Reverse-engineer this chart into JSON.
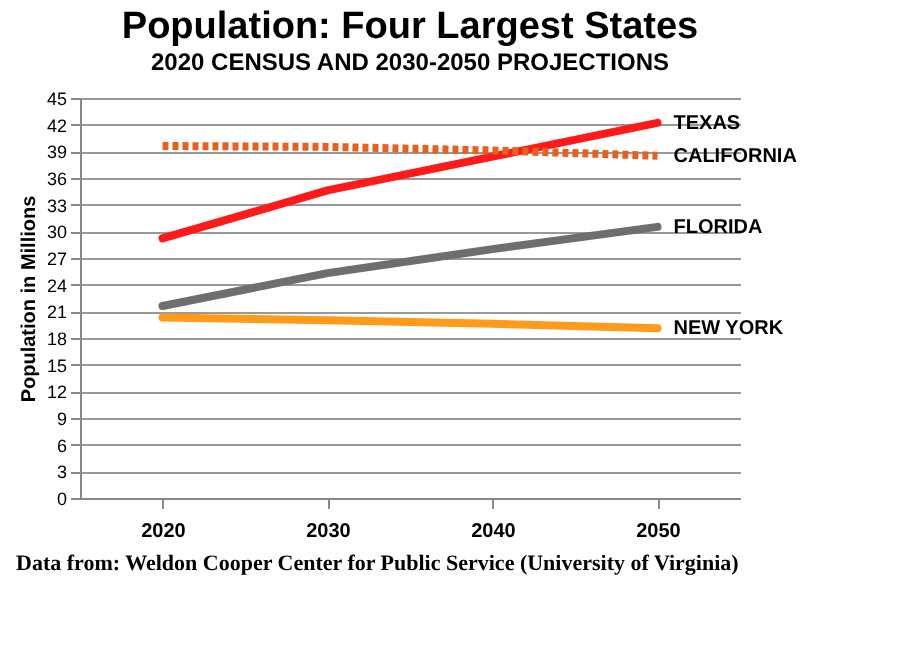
{
  "chart_data": {
    "type": "line",
    "title": "Population: Four Largest States",
    "subtitle": "2020 CENSUS AND 2030-2050 PROJECTIONS",
    "ylabel": "Population in Millions",
    "categories": [
      "2020",
      "2030",
      "2040",
      "2050"
    ],
    "series": [
      {
        "name": "TEXAS",
        "color": "#ff1a1a",
        "values": [
          29.2,
          34.6,
          38.4,
          42.2
        ]
      },
      {
        "name": "CALIFORNIA",
        "color": "#e8601c",
        "line_style": "dotted",
        "values": [
          39.6,
          39.5,
          39.1,
          38.5
        ]
      },
      {
        "name": "FLORIDA",
        "color": "#6e6e6e",
        "values": [
          21.6,
          25.3,
          28,
          30.5
        ]
      },
      {
        "name": "NEW YORK",
        "color": "#ff9a1a",
        "values": [
          20.3,
          20,
          19.6,
          19.1
        ]
      }
    ],
    "ylim": [
      0,
      45
    ],
    "yticks": [
      0,
      3,
      6,
      9,
      12,
      15,
      18,
      21,
      24,
      27,
      30,
      33,
      36,
      39,
      42,
      45
    ],
    "grid": "y",
    "marker": "none",
    "line_style": "solid",
    "annotations": [
      "Data from: Weldon Cooper Center for Public Service (University of Virginia)"
    ]
  }
}
